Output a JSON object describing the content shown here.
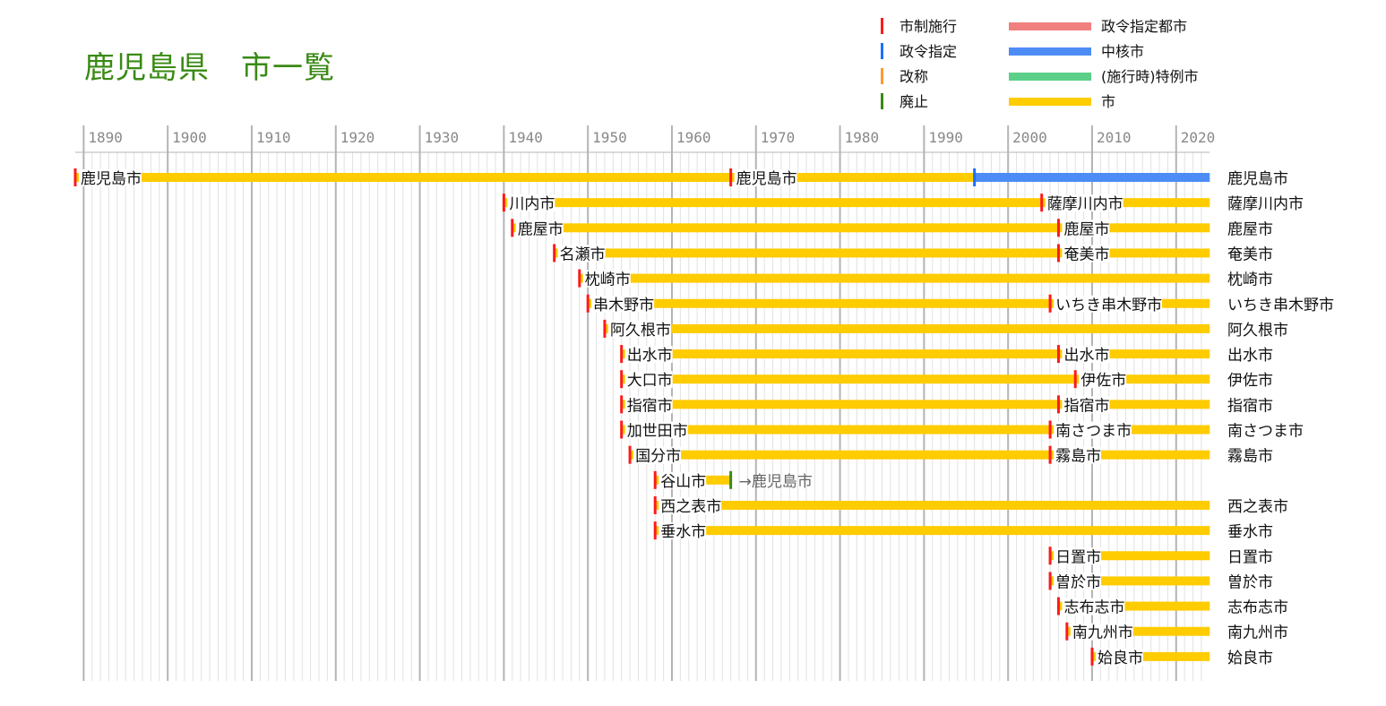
{
  "title": "鹿児島県　市一覧",
  "legend": {
    "markers": [
      {
        "label": "市制施行",
        "color": "#ff1a1a"
      },
      {
        "label": "政令指定",
        "color": "#1a6fff"
      },
      {
        "label": "改称",
        "color": "#ff9933"
      },
      {
        "label": "廃止",
        "color": "#3a8a14"
      }
    ],
    "bars": [
      {
        "label": "政令指定都市",
        "color": "#f08080"
      },
      {
        "label": "中核市",
        "color": "#4d8cf5"
      },
      {
        "label": "(施行時)特例市",
        "color": "#5ccf88"
      },
      {
        "label": "市",
        "color": "#ffcc00"
      }
    ]
  },
  "chart_data": {
    "type": "timeline",
    "x_ticks": [
      "1890",
      "1900",
      "1910",
      "1920",
      "1930",
      "1940",
      "1950",
      "1960",
      "1970",
      "1980",
      "1990",
      "2000",
      "2010",
      "2020"
    ],
    "xlim": [
      1889,
      2024
    ],
    "rows": [
      {
        "end_label": "鹿児島市",
        "segments": [
          {
            "start": 1889,
            "end": 1996,
            "type": "市"
          },
          {
            "start": 1996,
            "end": 2024,
            "type": "中核市"
          }
        ],
        "events": [
          {
            "year": 1889,
            "kind": "市制施行",
            "label": "鹿児島市"
          },
          {
            "year": 1967,
            "kind": "市制施行",
            "label": "鹿児島市"
          },
          {
            "year": 1996,
            "kind": "政令指定",
            "label": ""
          }
        ]
      },
      {
        "end_label": "薩摩川内市",
        "segments": [
          {
            "start": 1940,
            "end": 2024,
            "type": "市"
          }
        ],
        "events": [
          {
            "year": 1940,
            "kind": "市制施行",
            "label": "川内市"
          },
          {
            "year": 2004,
            "kind": "市制施行",
            "label": "薩摩川内市"
          }
        ]
      },
      {
        "end_label": "鹿屋市",
        "segments": [
          {
            "start": 1941,
            "end": 2024,
            "type": "市"
          }
        ],
        "events": [
          {
            "year": 1941,
            "kind": "市制施行",
            "label": "鹿屋市"
          },
          {
            "year": 2006,
            "kind": "市制施行",
            "label": "鹿屋市"
          }
        ]
      },
      {
        "end_label": "奄美市",
        "segments": [
          {
            "start": 1946,
            "end": 2024,
            "type": "市"
          }
        ],
        "events": [
          {
            "year": 1946,
            "kind": "市制施行",
            "label": "名瀬市"
          },
          {
            "year": 2006,
            "kind": "市制施行",
            "label": "奄美市"
          }
        ]
      },
      {
        "end_label": "枕崎市",
        "segments": [
          {
            "start": 1949,
            "end": 2024,
            "type": "市"
          }
        ],
        "events": [
          {
            "year": 1949,
            "kind": "市制施行",
            "label": "枕崎市"
          }
        ]
      },
      {
        "end_label": "いちき串木野市",
        "segments": [
          {
            "start": 1950,
            "end": 2024,
            "type": "市"
          }
        ],
        "events": [
          {
            "year": 1950,
            "kind": "市制施行",
            "label": "串木野市"
          },
          {
            "year": 2005,
            "kind": "市制施行",
            "label": "いちき串木野市"
          }
        ]
      },
      {
        "end_label": "阿久根市",
        "segments": [
          {
            "start": 1952,
            "end": 2024,
            "type": "市"
          }
        ],
        "events": [
          {
            "year": 1952,
            "kind": "市制施行",
            "label": "阿久根市"
          }
        ]
      },
      {
        "end_label": "出水市",
        "segments": [
          {
            "start": 1954,
            "end": 2024,
            "type": "市"
          }
        ],
        "events": [
          {
            "year": 1954,
            "kind": "市制施行",
            "label": "出水市"
          },
          {
            "year": 2006,
            "kind": "市制施行",
            "label": "出水市"
          }
        ]
      },
      {
        "end_label": "伊佐市",
        "segments": [
          {
            "start": 1954,
            "end": 2024,
            "type": "市"
          }
        ],
        "events": [
          {
            "year": 1954,
            "kind": "市制施行",
            "label": "大口市"
          },
          {
            "year": 2008,
            "kind": "市制施行",
            "label": "伊佐市"
          }
        ]
      },
      {
        "end_label": "指宿市",
        "segments": [
          {
            "start": 1954,
            "end": 2024,
            "type": "市"
          }
        ],
        "events": [
          {
            "year": 1954,
            "kind": "市制施行",
            "label": "指宿市"
          },
          {
            "year": 2006,
            "kind": "市制施行",
            "label": "指宿市"
          }
        ]
      },
      {
        "end_label": "南さつま市",
        "segments": [
          {
            "start": 1954,
            "end": 2024,
            "type": "市"
          }
        ],
        "events": [
          {
            "year": 1954,
            "kind": "市制施行",
            "label": "加世田市"
          },
          {
            "year": 2005,
            "kind": "市制施行",
            "label": "南さつま市"
          }
        ]
      },
      {
        "end_label": "霧島市",
        "segments": [
          {
            "start": 1955,
            "end": 2024,
            "type": "市"
          }
        ],
        "events": [
          {
            "year": 1955,
            "kind": "市制施行",
            "label": "国分市"
          },
          {
            "year": 2005,
            "kind": "市制施行",
            "label": "霧島市"
          }
        ]
      },
      {
        "end_label": "",
        "segments": [
          {
            "start": 1958,
            "end": 1967,
            "type": "市"
          }
        ],
        "events": [
          {
            "year": 1958,
            "kind": "市制施行",
            "label": "谷山市"
          },
          {
            "year": 1967,
            "kind": "廃止",
            "label": "→鹿児島市"
          }
        ]
      },
      {
        "end_label": "西之表市",
        "segments": [
          {
            "start": 1958,
            "end": 2024,
            "type": "市"
          }
        ],
        "events": [
          {
            "year": 1958,
            "kind": "市制施行",
            "label": "西之表市"
          }
        ]
      },
      {
        "end_label": "垂水市",
        "segments": [
          {
            "start": 1958,
            "end": 2024,
            "type": "市"
          }
        ],
        "events": [
          {
            "year": 1958,
            "kind": "市制施行",
            "label": "垂水市"
          }
        ]
      },
      {
        "end_label": "日置市",
        "segments": [
          {
            "start": 2005,
            "end": 2024,
            "type": "市"
          }
        ],
        "events": [
          {
            "year": 2005,
            "kind": "市制施行",
            "label": "日置市"
          }
        ]
      },
      {
        "end_label": "曽於市",
        "segments": [
          {
            "start": 2005,
            "end": 2024,
            "type": "市"
          }
        ],
        "events": [
          {
            "year": 2005,
            "kind": "市制施行",
            "label": "曽於市"
          }
        ]
      },
      {
        "end_label": "志布志市",
        "segments": [
          {
            "start": 2006,
            "end": 2024,
            "type": "市"
          }
        ],
        "events": [
          {
            "year": 2006,
            "kind": "市制施行",
            "label": "志布志市"
          }
        ]
      },
      {
        "end_label": "南九州市",
        "segments": [
          {
            "start": 2007,
            "end": 2024,
            "type": "市"
          }
        ],
        "events": [
          {
            "year": 2007,
            "kind": "市制施行",
            "label": "南九州市"
          }
        ]
      },
      {
        "end_label": "姶良市",
        "segments": [
          {
            "start": 2010,
            "end": 2024,
            "type": "市"
          }
        ],
        "events": [
          {
            "year": 2010,
            "kind": "市制施行",
            "label": "姶良市"
          }
        ]
      }
    ]
  }
}
